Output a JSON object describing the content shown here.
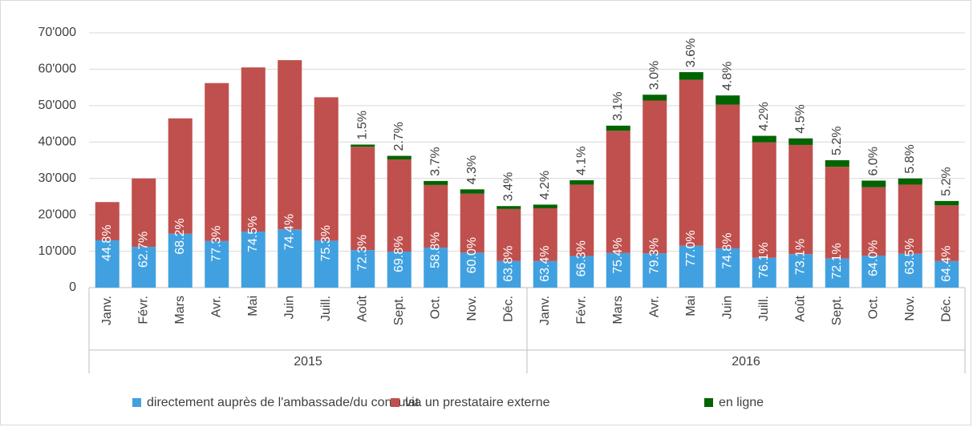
{
  "chart_data": {
    "type": "stacked-bar",
    "categories": [
      "Janv.",
      "Févr.",
      "Mars",
      "Avr.",
      "Mai",
      "Juin",
      "Juill.",
      "Août",
      "Sept.",
      "Oct.",
      "Nov.",
      "Déc.",
      "Janv.",
      "Févr.",
      "Mars",
      "Avr.",
      "Mai",
      "Juin",
      "Juill.",
      "Août",
      "Sept.",
      "Oct.",
      "Nov.",
      "Déc."
    ],
    "groups": [
      {
        "label": "2015",
        "span": 12
      },
      {
        "label": "2016",
        "span": 12
      }
    ],
    "series": [
      {
        "name": "directement auprès de l'ambassade/du consulat",
        "color": "#41a1e0",
        "values": [
          13000,
          11200,
          14800,
          12800,
          15400,
          16000,
          12900,
          10300,
          9900,
          11000,
          9600,
          7300,
          7300,
          8700,
          9500,
          9400,
          11500,
          10800,
          8200,
          9200,
          8000,
          8800,
          9300,
          7300
        ]
      },
      {
        "name": "via un prestataire externe",
        "color": "#c0504d",
        "values": [
          10500,
          18800,
          31700,
          43400,
          45100,
          46500,
          39400,
          28400,
          25300,
          17200,
          16200,
          14300,
          14500,
          19600,
          33600,
          42000,
          45600,
          39500,
          31700,
          30000,
          25200,
          18800,
          19000,
          15300
        ],
        "labels": [
          "44.8%",
          "62.7%",
          "68.2%",
          "77.3%",
          "74.5%",
          "74.4%",
          "75.3%",
          "72.3%",
          "69.8%",
          "58.8%",
          "60.0%",
          "63.8%",
          "63.4%",
          "66.3%",
          "75.4%",
          "79.3%",
          "77.0%",
          "74.8%",
          "76.1%",
          "73.1%",
          "72.1%",
          "64.0%",
          "63.5%",
          "64.4%"
        ]
      },
      {
        "name": "en ligne",
        "color": "#006400",
        "values": [
          null,
          null,
          null,
          null,
          null,
          null,
          null,
          600,
          1000,
          1100,
          1200,
          800,
          1000,
          1200,
          1400,
          1600,
          2100,
          2500,
          1800,
          1800,
          1800,
          1800,
          1700,
          1200
        ],
        "labels": [
          null,
          null,
          null,
          null,
          null,
          null,
          null,
          "1.5%",
          "2.7%",
          "3.7%",
          "4.3%",
          "3.4%",
          "4.2%",
          "4.1%",
          "3.1%",
          "3.0%",
          "3.6%",
          "4.8%",
          "4.2%",
          "4.5%",
          "5.2%",
          "6.0%",
          "5.8%",
          "5.2%"
        ]
      }
    ],
    "ylim": [
      0,
      70000
    ],
    "yticks": [
      0,
      {
        "value": 10000,
        "label": "10'000"
      },
      {
        "value": 20000,
        "label": "20'000"
      },
      {
        "value": 30000,
        "label": "30'000"
      },
      {
        "value": 40000,
        "label": "40'000"
      },
      {
        "value": 50000,
        "label": "50'000"
      },
      {
        "value": 60000,
        "label": "60'000"
      },
      {
        "value": 70000,
        "label": "70'000"
      }
    ],
    "grid": true,
    "legend": "bottom"
  }
}
